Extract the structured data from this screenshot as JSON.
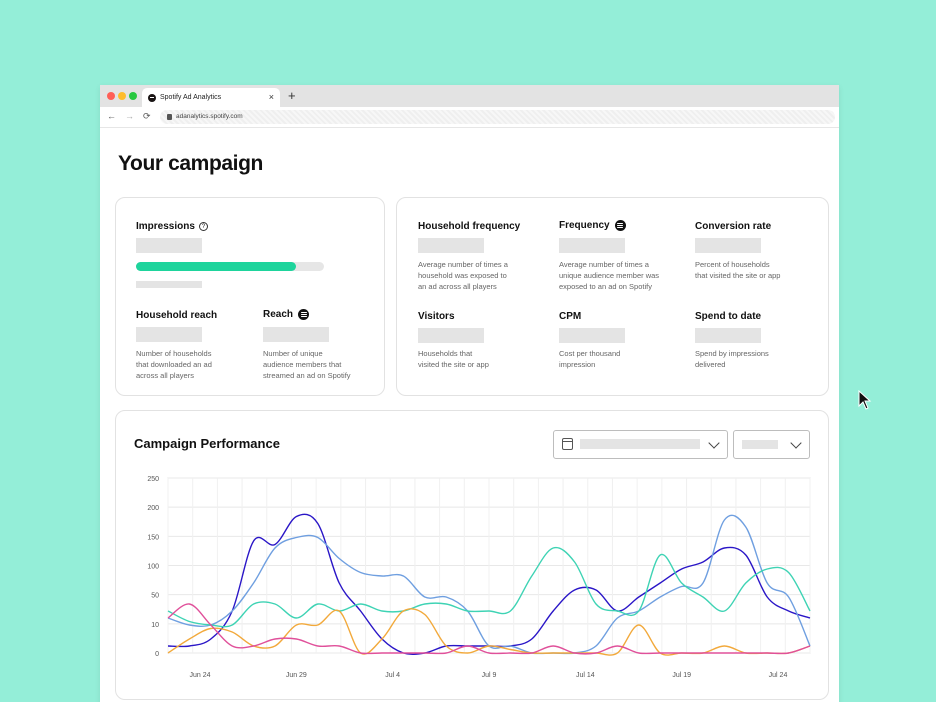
{
  "browser": {
    "tab_title": "Spotify Ad Analytics",
    "url": "adanalytics.spotify.com",
    "new_tab_label": "+",
    "close_label": "×",
    "back_label": "←",
    "forward_label": "→",
    "reload_label": "⟳"
  },
  "page": {
    "title": "Your campaign"
  },
  "overview": {
    "impressions_label": "Impressions",
    "impressions_help_glyph": "?",
    "impressions_progress": 0.85,
    "household_reach_label": "Household reach",
    "household_reach_desc": [
      "Number of households",
      "that downloaded an ad",
      "across all players"
    ],
    "reach_label": "Reach",
    "reach_desc": [
      "Number of unique",
      "audience members that",
      "streamed an ad on Spotify"
    ]
  },
  "metrics": {
    "household_frequency_label": "Household frequency",
    "household_frequency_desc": [
      "Average number of times a",
      "household was exposed to",
      "an ad across all players"
    ],
    "frequency_label": "Frequency",
    "frequency_desc": [
      "Average number of times a",
      "unique audience member was",
      "exposed to an ad on Spotify"
    ],
    "conversion_rate_label": "Conversion rate",
    "conversion_rate_desc": [
      "Percent of households",
      "that visited the site or app"
    ],
    "visitors_label": "Visitors",
    "visitors_desc": [
      "Households that",
      "visited the site or app"
    ],
    "cpm_label": "CPM",
    "cpm_desc": [
      "Cost per thousand",
      "impression"
    ],
    "spend_label": "Spend to date",
    "spend_desc": [
      "Spend by impressions",
      "delivered"
    ]
  },
  "colors": {
    "accent": "#1ed49c",
    "placeholder": "#e4e4e4",
    "background": "#94eed8"
  },
  "icons": {
    "help": "question-circle-icon",
    "spotify": "spotify-logo-icon",
    "calendar": "calendar-icon",
    "chevron": "chevron-down-icon",
    "cursor": "mouse-pointer-icon"
  },
  "chart_data": {
    "type": "line",
    "title": "Campaign Performance",
    "y_ticks": [
      "250",
      "200",
      "150",
      "100",
      "50",
      "10",
      "0"
    ],
    "x_tick_labels": [
      "Jun 24",
      "Jun 29",
      "Jul 4",
      "Jul 9",
      "Jul 14",
      "Jul 19",
      "Jul 24"
    ],
    "grid": true,
    "series": [
      {
        "color": "#2a16c7",
        "values": [
          10,
          10,
          20,
          60,
          160,
          155,
          195,
          185,
          100,
          60,
          20,
          0,
          0,
          10,
          10,
          10,
          10,
          20,
          60,
          90,
          90,
          60,
          80,
          100,
          120,
          130,
          150,
          140,
          80,
          60,
          50
        ]
      },
      {
        "color": "#6f9fe0",
        "values": [
          50,
          40,
          40,
          60,
          100,
          150,
          165,
          165,
          135,
          115,
          110,
          110,
          80,
          80,
          60,
          10,
          10,
          0,
          0,
          0,
          10,
          50,
          60,
          80,
          95,
          100,
          190,
          180,
          100,
          80,
          10
        ]
      },
      {
        "color": "#3ed3b4",
        "values": [
          60,
          45,
          40,
          40,
          70,
          70,
          50,
          70,
          60,
          70,
          60,
          60,
          70,
          70,
          60,
          60,
          60,
          110,
          150,
          130,
          70,
          60,
          60,
          140,
          100,
          80,
          60,
          100,
          120,
          115,
          60
        ]
      },
      {
        "color": "#f2a93b",
        "values": [
          0,
          20,
          35,
          30,
          10,
          10,
          40,
          40,
          60,
          0,
          20,
          60,
          55,
          10,
          0,
          10,
          5,
          0,
          0,
          0,
          0,
          0,
          40,
          0,
          0,
          0,
          10,
          0,
          0,
          0,
          10
        ]
      },
      {
        "color": "#e0509a",
        "values": [
          50,
          70,
          40,
          10,
          10,
          20,
          20,
          10,
          10,
          0,
          0,
          0,
          0,
          0,
          10,
          0,
          0,
          0,
          10,
          0,
          0,
          10,
          0,
          0,
          0,
          0,
          0,
          0,
          0,
          0,
          10
        ]
      }
    ]
  }
}
